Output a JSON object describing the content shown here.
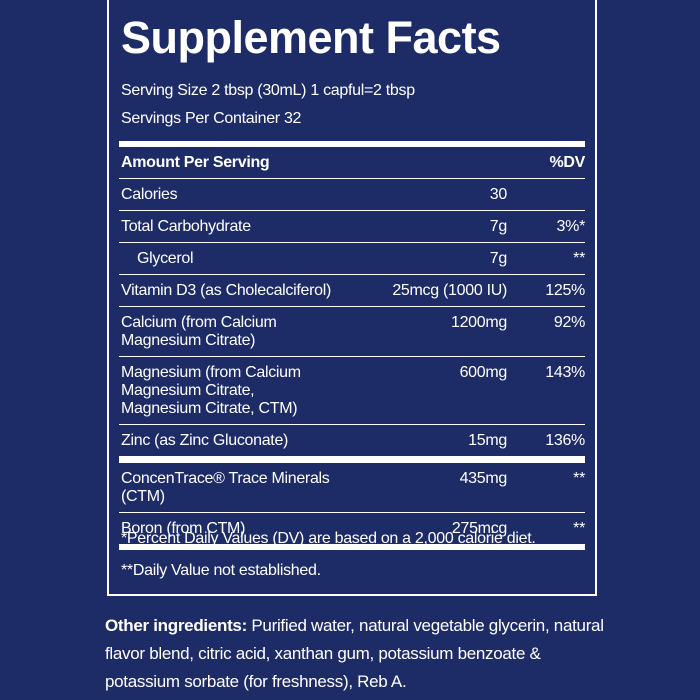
{
  "title": "Supplement Facts",
  "serving": [
    "Serving Size 2 tbsp (30mL) 1 capful=2 tbsp",
    "Servings Per Container 32"
  ],
  "table": {
    "header": [
      "Amount Per Serving",
      "%DV"
    ],
    "rows": [
      {
        "name": "Calories",
        "amount": "30"
      },
      {
        "name": "Total Carbohydrate",
        "amount": "7g",
        "dv": "3%*"
      },
      {
        "name": "Glycerol",
        "amount": "7g",
        "dv": "**"
      },
      {
        "name": "Vitamin D3 (as Cholecalciferol)",
        "amount": "25mcg (1000 IU)",
        "dv": "125%"
      },
      {
        "name": "Calcium (from Calcium Magnesium Citrate)",
        "amount": "1200mg",
        "dv": "92%"
      },
      {
        "name": "Magnesium (from Calcium Magnesium Citrate, Magnesium Citrate, CTM)",
        "amount": "600mg",
        "dv": "143%"
      },
      {
        "name": "Zinc (as Zinc Gluconate)",
        "amount": "15mg",
        "dv": "136%"
      },
      {
        "name": "ConcenTrace® Trace Minerals (CTM)",
        "amount": "435mg",
        "dv": "**"
      },
      {
        "name": "Boron (from CTM)",
        "amount": "275mcg",
        "dv": "**"
      }
    ]
  },
  "footnotes": [
    "*Percent Daily Values (DV) are based on a 2,000 calorie diet.",
    "**Daily Value not established."
  ],
  "other_ingredients": {
    "label": "Other ingredients:",
    "text": "Purified water, natural vegetable glycerin, natural flavor blend, citric acid, xanthan gum, potassium benzoate & potassium sorbate (for freshness), Reb A."
  }
}
